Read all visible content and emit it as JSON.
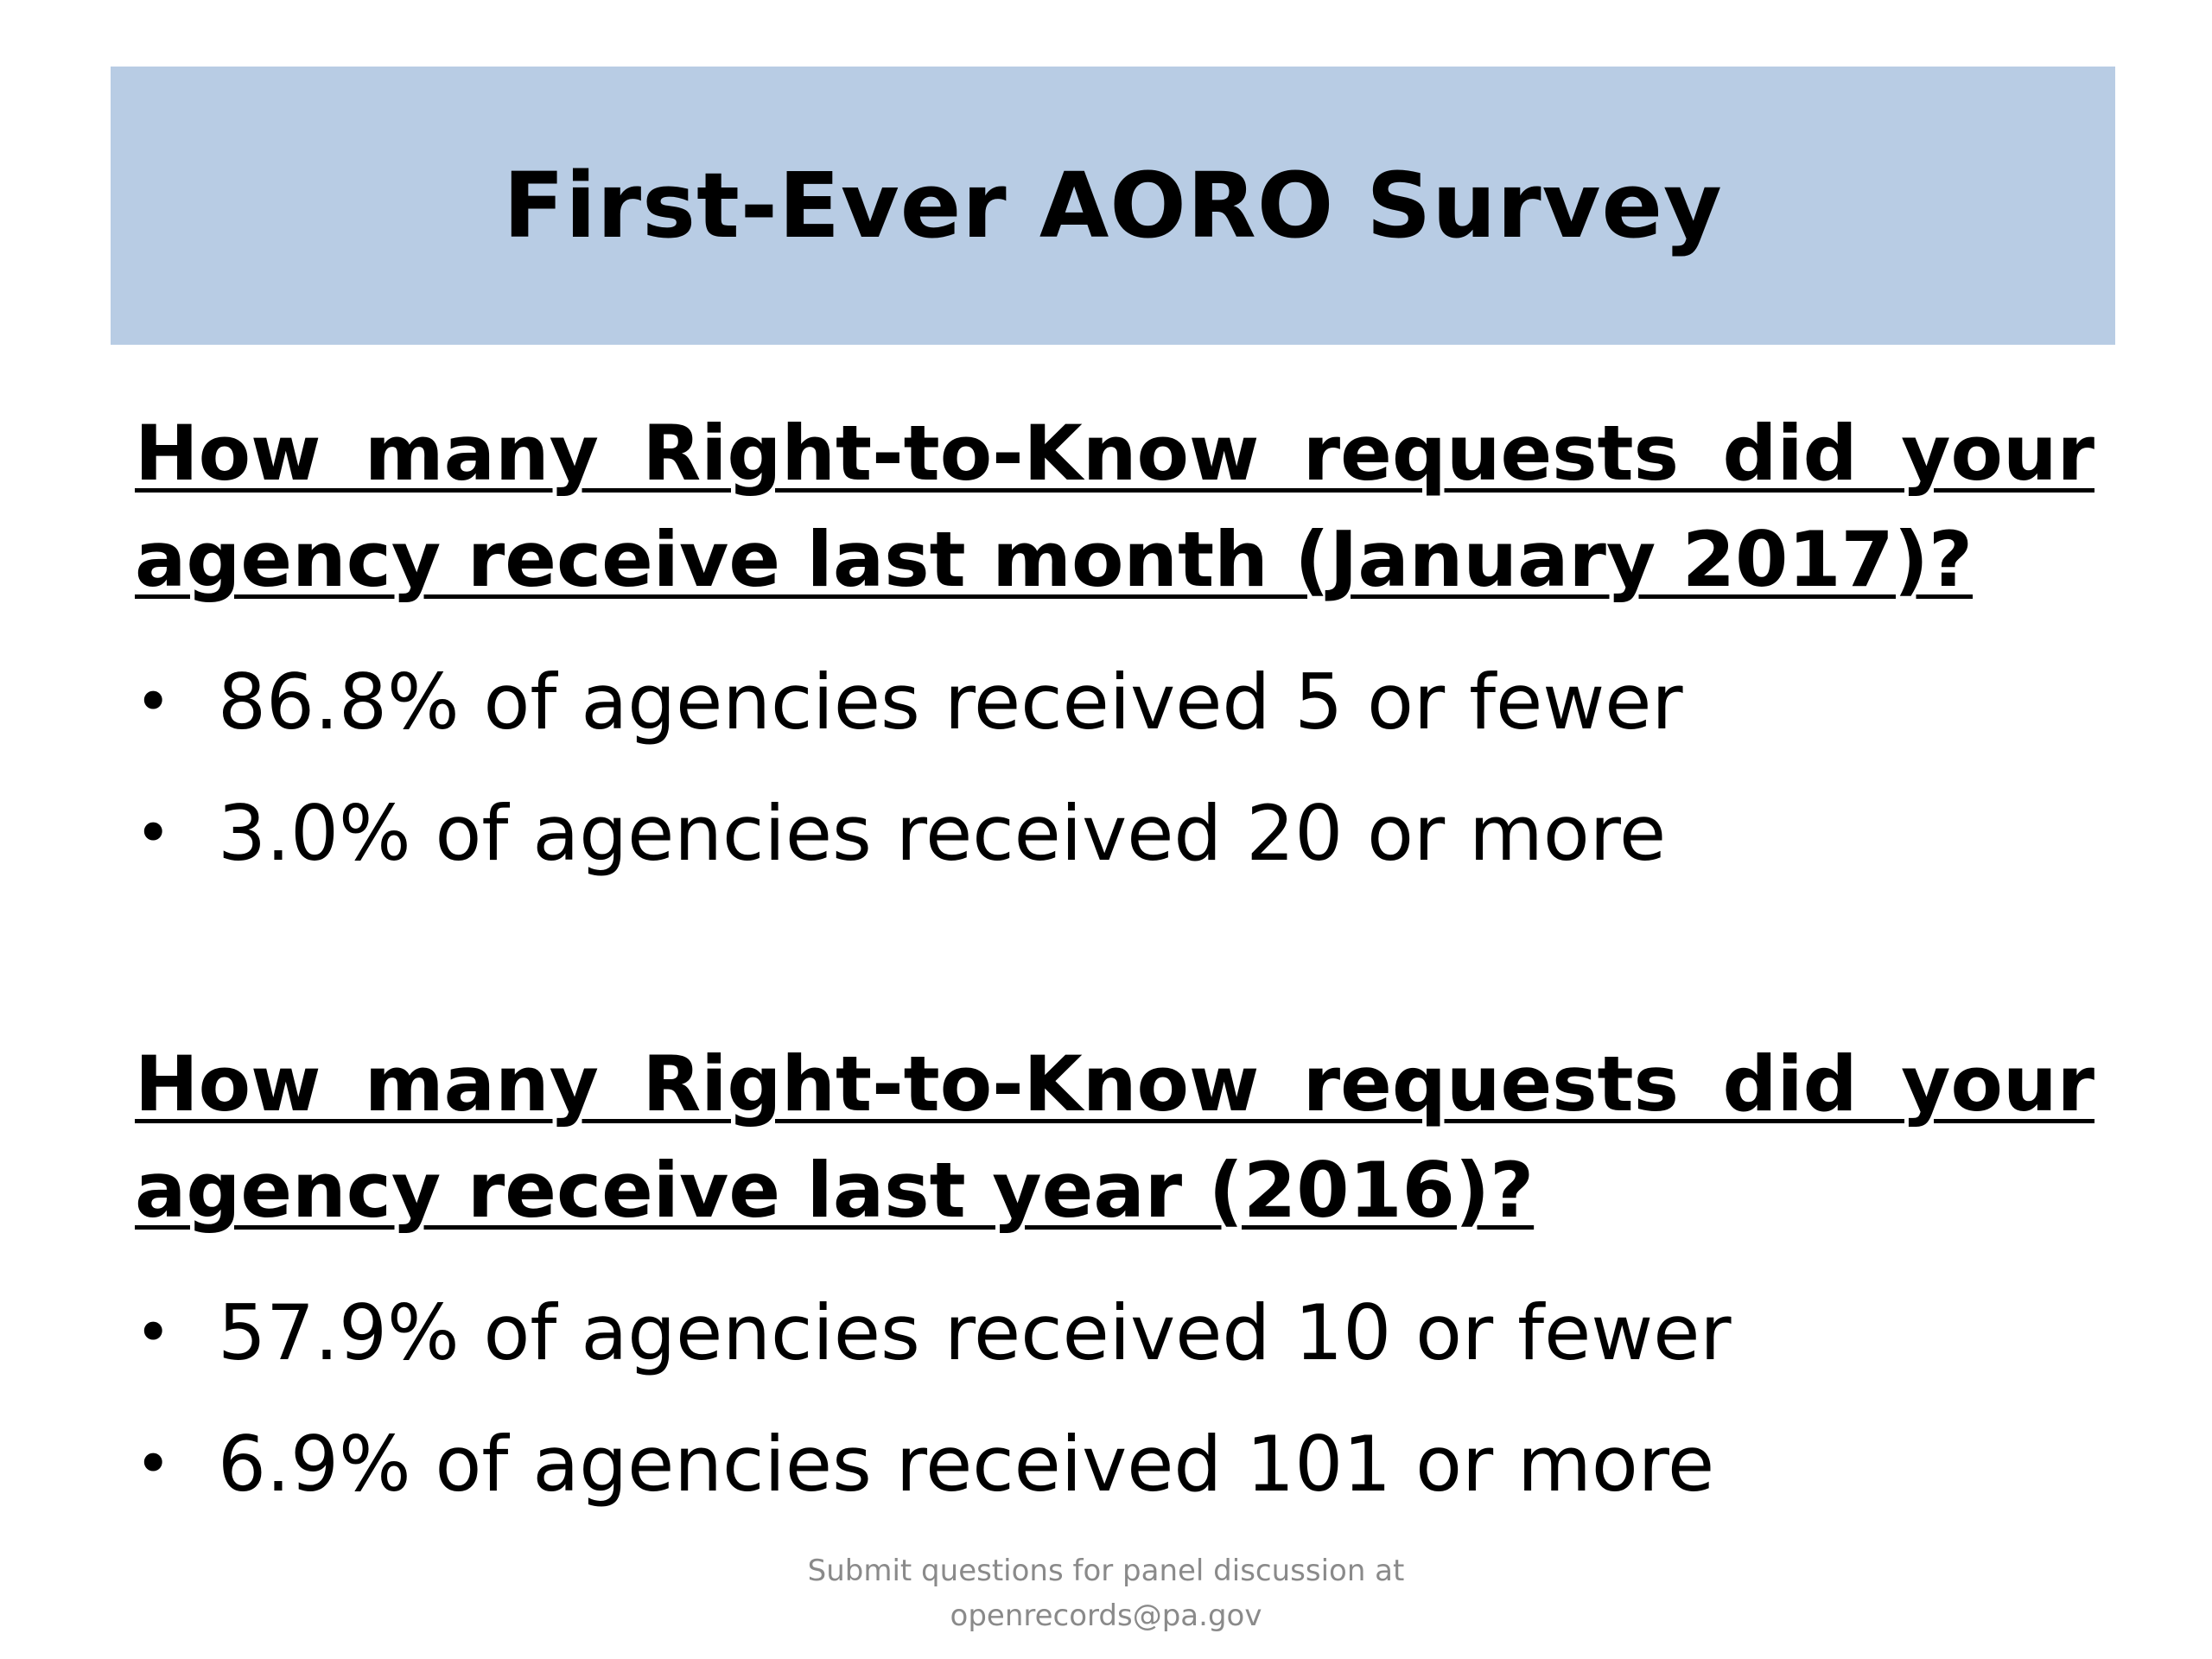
{
  "colors": {
    "title_bar_bg": "#b8cce4",
    "text": "#000000",
    "footer_text": "#8a8a8a"
  },
  "slide": {
    "title": "First-Ever AORO Survey",
    "sections": [
      {
        "question": "How many Right-to-Know requests did your agency receive last month (January 2017)?",
        "bullets": [
          "86.8% of agencies received 5 or fewer",
          "3.0% of agencies received 20 or more"
        ]
      },
      {
        "question": "How many Right-to-Know requests did your agency receive last year (2016)?",
        "bullets": [
          "57.9% of agencies received 10 or fewer",
          "6.9% of agencies received 101 or more"
        ]
      }
    ],
    "footer": {
      "line1": "Submit questions for panel discussion at",
      "line2": "openrecords@pa.gov"
    }
  }
}
